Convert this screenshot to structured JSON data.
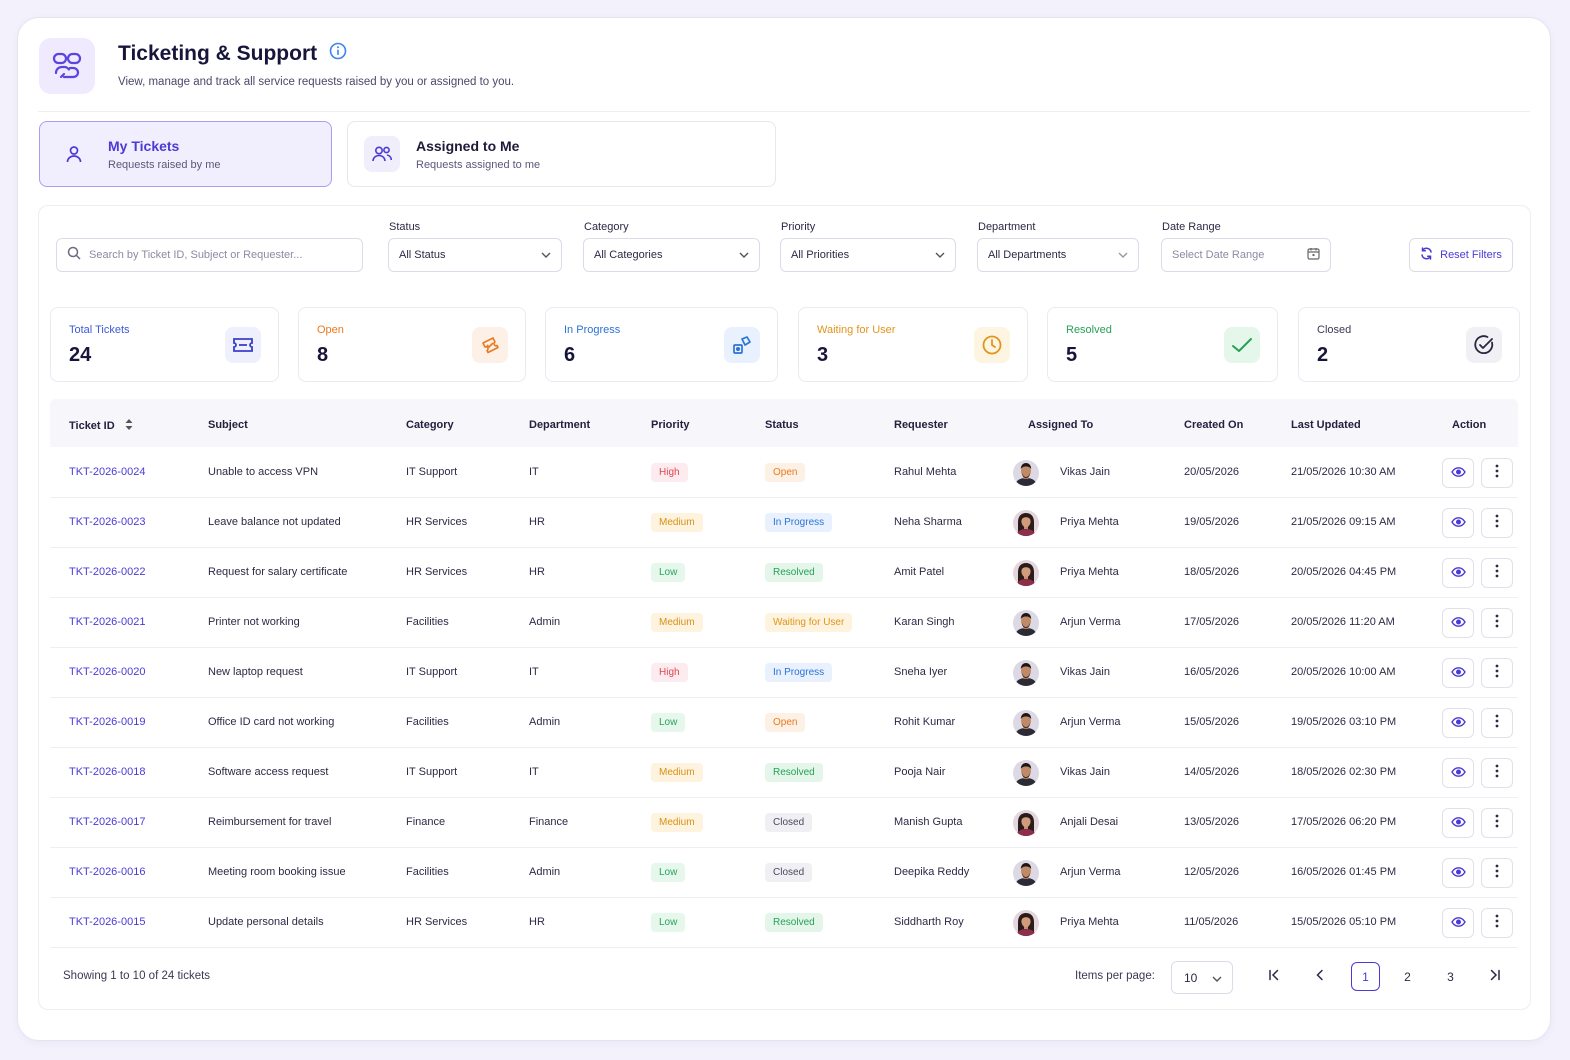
{
  "header": {
    "title": "Ticketing & Support",
    "subtitle": "View, manage and track all service requests raised by you or assigned to you."
  },
  "tabs": [
    {
      "label": "My Tickets",
      "sub": "Requests raised by me",
      "active": true
    },
    {
      "label": "Assigned to Me",
      "sub": "Requests assigned to me",
      "active": false
    }
  ],
  "filters": {
    "search_placeholder": "Search by Ticket ID, Subject or Requester...",
    "status": {
      "label": "Status",
      "value": "All Status"
    },
    "category": {
      "label": "Category",
      "value": "All Categories"
    },
    "priority": {
      "label": "Priority",
      "value": "All Priorities"
    },
    "department": {
      "label": "Department",
      "value": "All Departments"
    },
    "date_range": {
      "label": "Date Range",
      "placeholder": "Select Date Range"
    },
    "reset_label": "Reset Filters"
  },
  "stats": [
    {
      "label": "Total Tickets",
      "value": "24",
      "color": "#3b5bdb",
      "icon": "ticket-icon"
    },
    {
      "label": "Open",
      "value": "8",
      "color": "#ea7a20",
      "icon": "open-ticket-icon"
    },
    {
      "label": "In Progress",
      "value": "6",
      "color": "#2b73d6",
      "icon": "progress-icon"
    },
    {
      "label": "Waiting for User",
      "value": "3",
      "color": "#e0961b",
      "icon": "clock-icon"
    },
    {
      "label": "Resolved",
      "value": "5",
      "color": "#26a158",
      "icon": "check-icon"
    },
    {
      "label": "Closed",
      "value": "2",
      "color": "#3b3955",
      "icon": "check-circle-icon"
    }
  ],
  "table": {
    "headers": [
      "Ticket ID",
      "Subject",
      "Category",
      "Department",
      "Priority",
      "Status",
      "Requester",
      "Assigned To",
      "Created On",
      "Last Updated",
      "Action"
    ],
    "rows": [
      {
        "id": "TKT-2026-0024",
        "subject": "Unable to access VPN",
        "category": "IT Support",
        "department": "IT",
        "priority": "High",
        "status": "Open",
        "requester": "Rahul Mehta",
        "assignee": "Vikas Jain",
        "avatar": "m",
        "created": "20/05/2026",
        "updated": "21/05/2026 10:30 AM"
      },
      {
        "id": "TKT-2026-0023",
        "subject": "Leave balance not updated",
        "category": "HR Services",
        "department": "HR",
        "priority": "Medium",
        "status": "In Progress",
        "requester": "Neha Sharma",
        "assignee": "Priya Mehta",
        "avatar": "f",
        "created": "19/05/2026",
        "updated": "21/05/2026 09:15 AM"
      },
      {
        "id": "TKT-2026-0022",
        "subject": "Request for salary certificate",
        "category": "HR Services",
        "department": "HR",
        "priority": "Low",
        "status": "Resolved",
        "requester": "Amit Patel",
        "assignee": "Priya Mehta",
        "avatar": "f",
        "created": "18/05/2026",
        "updated": "20/05/2026 04:45 PM"
      },
      {
        "id": "TKT-2026-0021",
        "subject": "Printer not working",
        "category": "Facilities",
        "department": "Admin",
        "priority": "Medium",
        "status": "Waiting for User",
        "requester": "Karan Singh",
        "assignee": "Arjun Verma",
        "avatar": "m",
        "created": "17/05/2026",
        "updated": "20/05/2026 11:20 AM"
      },
      {
        "id": "TKT-2026-0020",
        "subject": "New laptop request",
        "category": "IT Support",
        "department": "IT",
        "priority": "High",
        "status": "In Progress",
        "requester": "Sneha Iyer",
        "assignee": "Vikas Jain",
        "avatar": "m",
        "created": "16/05/2026",
        "updated": "20/05/2026 10:00 AM"
      },
      {
        "id": "TKT-2026-0019",
        "subject": "Office ID card not working",
        "category": "Facilities",
        "department": "Admin",
        "priority": "Low",
        "status": "Open",
        "requester": "Rohit Kumar",
        "assignee": "Arjun Verma",
        "avatar": "m",
        "created": "15/05/2026",
        "updated": "19/05/2026 03:10 PM"
      },
      {
        "id": "TKT-2026-0018",
        "subject": "Software access request",
        "category": "IT Support",
        "department": "IT",
        "priority": "Medium",
        "status": "Resolved",
        "requester": "Pooja Nair",
        "assignee": "Vikas Jain",
        "avatar": "m",
        "created": "14/05/2026",
        "updated": "18/05/2026 02:30 PM"
      },
      {
        "id": "TKT-2026-0017",
        "subject": "Reimbursement for travel",
        "category": "Finance",
        "department": "Finance",
        "priority": "Medium",
        "status": "Closed",
        "requester": "Manish Gupta",
        "assignee": "Anjali Desai",
        "avatar": "f",
        "created": "13/05/2026",
        "updated": "17/05/2026 06:20 PM"
      },
      {
        "id": "TKT-2026-0016",
        "subject": "Meeting room booking issue",
        "category": "Facilities",
        "department": "Admin",
        "priority": "Low",
        "status": "Closed",
        "requester": "Deepika Reddy",
        "assignee": "Arjun Verma",
        "avatar": "m",
        "created": "12/05/2026",
        "updated": "16/05/2026 01:45 PM"
      },
      {
        "id": "TKT-2026-0015",
        "subject": "Update personal details",
        "category": "HR Services",
        "department": "HR",
        "priority": "Low",
        "status": "Resolved",
        "requester": "Siddharth Roy",
        "assignee": "Priya Mehta",
        "avatar": "f",
        "created": "11/05/2026",
        "updated": "15/05/2026 05:10 PM"
      }
    ]
  },
  "footer": {
    "showing": "Showing 1 to 10 of 24 tickets",
    "items_per_page_label": "Items per page:",
    "items_per_page": "10",
    "pages": [
      "1",
      "2",
      "3"
    ],
    "current_page": "1"
  }
}
